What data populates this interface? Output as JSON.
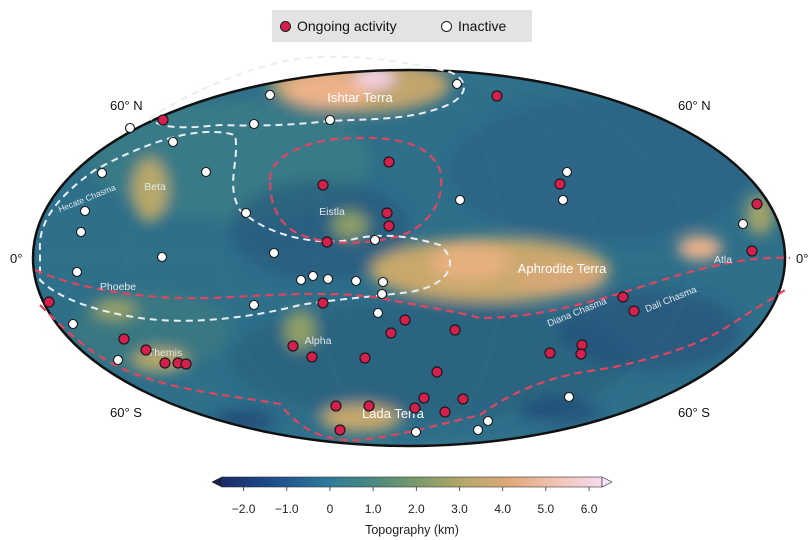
{
  "legend": {
    "active_label": "Ongoing activity",
    "inactive_label": "Inactive"
  },
  "map": {
    "projection": "Mollweide",
    "lat_labels": {
      "n60_left": "60° N",
      "n60_right": "60° N",
      "eq_left": "0°",
      "eq_right": "0°",
      "s60_left": "60° S",
      "s60_right": "60° S"
    },
    "regions": {
      "ishtar": "Ishtar Terra",
      "aphrodite": "Aphrodite Terra",
      "lada": "Lada Terra",
      "beta": "Beta",
      "eistla": "Eistla",
      "phoebe": "Phoebe",
      "alpha": "Alpha",
      "themis": "Themis",
      "atla": "Atla",
      "hecate": "Hecate Chasma",
      "diana": "Diana Chasma",
      "dali": "Dali Chasma"
    },
    "colors": {
      "active": "#d61f4d",
      "inactive": "#ffffff",
      "active_boundary": "#e0455f",
      "inactive_boundary": "#e8eef4",
      "outline": "#111111"
    }
  },
  "colorbar": {
    "title": "Topography (km)",
    "min": -2.5,
    "max": 6.3,
    "ticks": [
      "−2.0",
      "−1.0",
      "0",
      "1.0",
      "2.0",
      "3.0",
      "4.0",
      "5.0",
      "6.0"
    ],
    "tick_values": [
      -2,
      -1,
      0,
      1,
      2,
      3,
      4,
      5,
      6
    ],
    "extend": "both",
    "colormap": [
      "#1a2b6b",
      "#1e4f8c",
      "#2e7a9a",
      "#4a8a7f",
      "#7e9a6a",
      "#b8a86a",
      "#e0a87a",
      "#f2c4b4",
      "#f6d9f0"
    ]
  }
}
